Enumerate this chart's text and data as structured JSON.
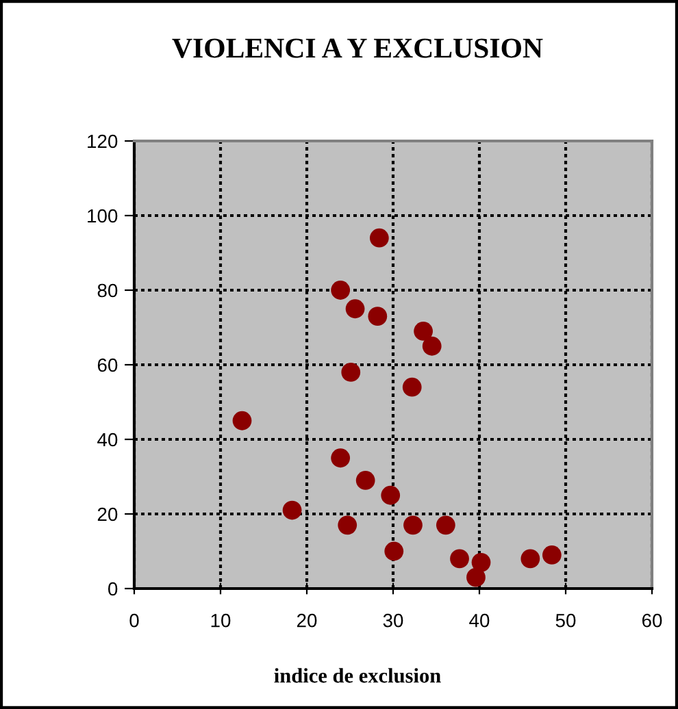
{
  "chart_data": {
    "type": "scatter",
    "title": "VIOLENCI A Y EXCLUSION",
    "xlabel": "indice de exclusion",
    "x": [
      28.4,
      23.9,
      25.6,
      28.2,
      33.5,
      34.5,
      25.1,
      32.2,
      12.5,
      23.9,
      26.8,
      29.7,
      18.3,
      24.7,
      32.3,
      36.1,
      30.1,
      37.7,
      40.2,
      39.6,
      45.9,
      48.4
    ],
    "values": [
      94,
      80,
      75,
      73,
      69,
      65,
      58,
      54,
      45,
      35,
      29,
      25,
      21,
      17,
      17,
      17,
      10,
      8,
      7,
      3,
      8,
      9
    ],
    "color": "#8b0000",
    "marker": "circle",
    "xlim": [
      0,
      60
    ],
    "ylim": [
      0,
      120
    ],
    "xticks": [
      0,
      10,
      20,
      30,
      40,
      50,
      60
    ],
    "yticks": [
      0,
      20,
      40,
      60,
      80,
      100,
      120
    ],
    "grid": true
  }
}
